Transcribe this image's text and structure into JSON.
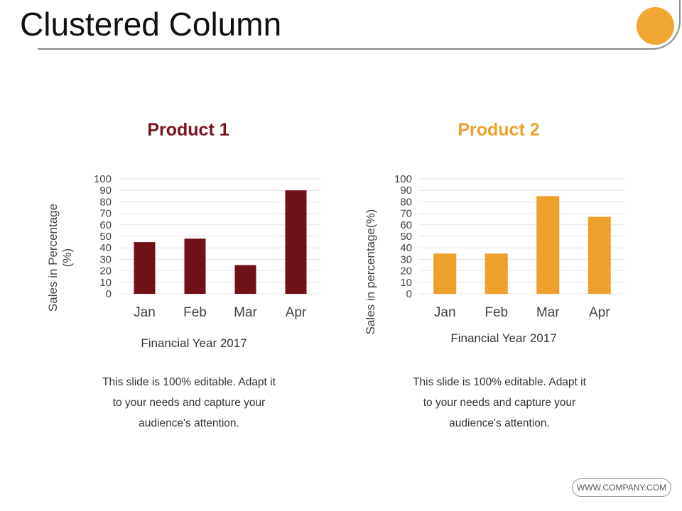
{
  "page": {
    "title": "Clustered Column",
    "accent_color": "#f0a733",
    "company": "WWW.COMPANY.COM"
  },
  "chart_data": [
    {
      "type": "bar",
      "title": "Product 1",
      "title_color": "#7a141c",
      "bar_color": "#6f1218",
      "categories": [
        "Jan",
        "Feb",
        "Mar",
        "Apr"
      ],
      "values": [
        45,
        48,
        25,
        90
      ],
      "xlabel": "Financial Year 2017",
      "ylabel_lines": [
        "Sales in Percentage",
        "(%)"
      ],
      "ylim": [
        0,
        100
      ],
      "yticks": [
        0,
        10,
        20,
        30,
        40,
        50,
        60,
        70,
        80,
        90,
        100
      ],
      "grid": true
    },
    {
      "type": "bar",
      "title": "Product 2",
      "title_color": "#eda12c",
      "bar_color": "#eda12c",
      "categories": [
        "Jan",
        "Feb",
        "Mar",
        "Apr"
      ],
      "values": [
        35,
        35,
        85,
        67
      ],
      "xlabel": "Financial Year 2017",
      "ylabel_lines": [
        "Sales in percentage(%)"
      ],
      "ylim": [
        0,
        100
      ],
      "yticks": [
        0,
        10,
        20,
        30,
        40,
        50,
        60,
        70,
        80,
        90,
        100
      ],
      "grid": true
    }
  ],
  "descriptions": [
    [
      "This slide is 100% editable. Adapt it",
      "to your needs and capture your",
      "audience's attention."
    ],
    [
      "This slide is 100% editable. Adapt it",
      "to your needs and capture your",
      "audience's attention."
    ]
  ]
}
